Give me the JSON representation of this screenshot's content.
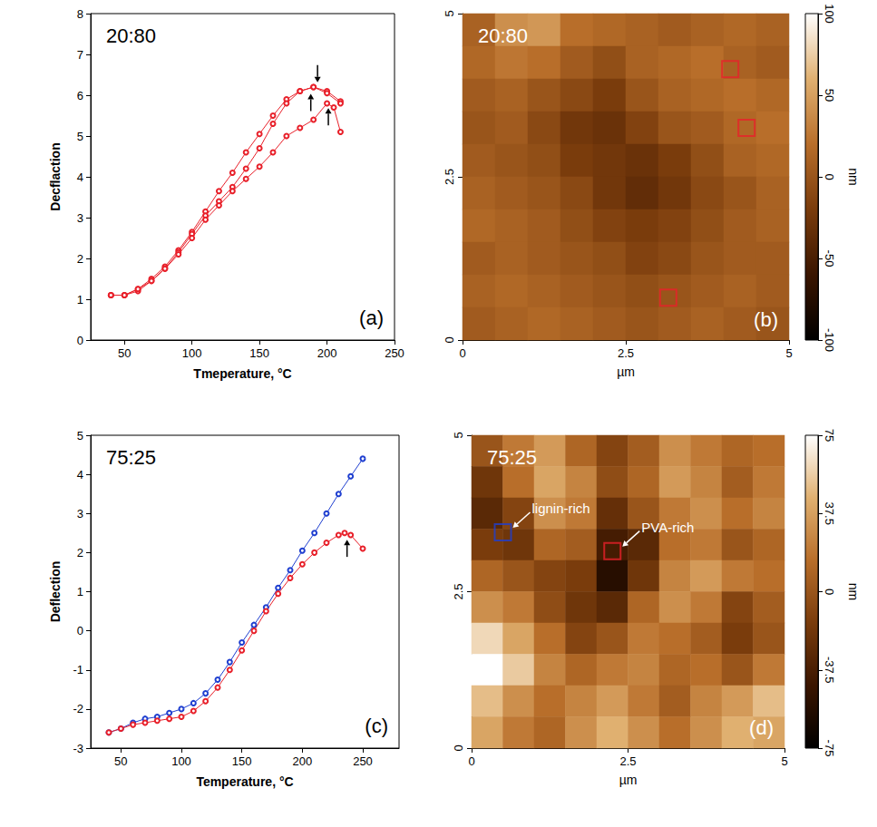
{
  "chart_data": [
    {
      "type": "line",
      "panel": "(a)",
      "title": "20:80",
      "x_label": "Tmeperature, °C",
      "y_label": "Decflaction",
      "xlim": [
        25,
        250
      ],
      "xticks": [
        50,
        100,
        150,
        200,
        250
      ],
      "ylim": [
        0,
        8
      ],
      "yticks": [
        0,
        1,
        2,
        3,
        4,
        5,
        6,
        7,
        8
      ],
      "marker": "circle",
      "series": [
        {
          "color": "#e8202a",
          "x": [
            40,
            50,
            60,
            70,
            80,
            90,
            100,
            110,
            120,
            130,
            140,
            150,
            160,
            170,
            180,
            190,
            200,
            210
          ],
          "values": [
            1.1,
            1.1,
            1.25,
            1.5,
            1.8,
            2.2,
            2.65,
            3.15,
            3.65,
            4.1,
            4.6,
            5.05,
            5.5,
            5.9,
            6.1,
            6.2,
            6.1,
            5.85
          ]
        },
        {
          "color": "#e8202a",
          "x": [
            40,
            50,
            60,
            70,
            80,
            90,
            100,
            110,
            120,
            130,
            140,
            150,
            160,
            170,
            180,
            190,
            200,
            210
          ],
          "values": [
            1.1,
            1.1,
            1.2,
            1.45,
            1.75,
            2.15,
            2.6,
            3.05,
            3.4,
            3.75,
            4.2,
            4.7,
            5.3,
            5.8,
            6.1,
            6.2,
            6.05,
            5.8
          ]
        },
        {
          "color": "#e8202a",
          "x": [
            40,
            50,
            60,
            70,
            80,
            90,
            100,
            110,
            120,
            130,
            140,
            150,
            160,
            170,
            180,
            190,
            200,
            205,
            210
          ],
          "values": [
            1.1,
            1.1,
            1.25,
            1.45,
            1.75,
            2.1,
            2.5,
            2.95,
            3.3,
            3.65,
            3.95,
            4.25,
            4.6,
            5.0,
            5.2,
            5.4,
            5.8,
            5.7,
            5.1
          ]
        }
      ],
      "arrows": [
        {
          "x": 193,
          "y": 6.25,
          "direction": "down"
        },
        {
          "x": 188,
          "y": 6.1,
          "direction": "up"
        },
        {
          "x": 201,
          "y": 5.75,
          "direction": "up"
        }
      ]
    },
    {
      "type": "heatmap",
      "panel": "(b)",
      "title": "20:80",
      "x_label": "µm",
      "xlim": [
        0,
        5
      ],
      "xticks": [
        0,
        2.5,
        5
      ],
      "ylim": [
        0,
        5
      ],
      "yticks": [
        0,
        2.5,
        5
      ],
      "heights": [
        [
          10,
          40,
          45,
          20,
          15,
          10,
          5,
          10,
          15,
          10
        ],
        [
          15,
          25,
          20,
          5,
          -5,
          10,
          15,
          20,
          10,
          5
        ],
        [
          5,
          10,
          0,
          -10,
          -20,
          0,
          10,
          15,
          20,
          15
        ],
        [
          0,
          5,
          -10,
          -25,
          -30,
          -15,
          0,
          5,
          15,
          20
        ],
        [
          5,
          0,
          -5,
          -20,
          -25,
          -30,
          -20,
          -5,
          10,
          15
        ],
        [
          10,
          5,
          0,
          -10,
          -25,
          -35,
          -25,
          -10,
          0,
          10
        ],
        [
          15,
          10,
          5,
          -5,
          -15,
          -20,
          -15,
          -5,
          5,
          10
        ],
        [
          5,
          10,
          5,
          0,
          -5,
          -15,
          -10,
          0,
          5,
          5
        ],
        [
          10,
          15,
          10,
          5,
          0,
          -5,
          0,
          5,
          10,
          5
        ],
        [
          5,
          10,
          15,
          10,
          5,
          0,
          5,
          10,
          5,
          0
        ]
      ],
      "colorbar": {
        "label": "nm",
        "range": [
          -100,
          100
        ],
        "ticks": [
          -100,
          -50,
          0,
          50,
          100
        ]
      },
      "boxes": [
        {
          "x": 4.1,
          "y": 4.15,
          "color": "#e8202a"
        },
        {
          "x": 4.35,
          "y": 3.25,
          "color": "#e8202a"
        },
        {
          "x": 3.15,
          "y": 0.65,
          "color": "#e8202a"
        }
      ]
    },
    {
      "type": "line",
      "panel": "(c)",
      "title": "75:25",
      "x_label": "Temperature, °C",
      "y_label": "Deflection",
      "xlim": [
        25,
        280
      ],
      "xticks": [
        50,
        100,
        150,
        200,
        250
      ],
      "ylim": [
        -3,
        5
      ],
      "yticks": [
        -3,
        -2,
        -1,
        0,
        1,
        2,
        3,
        4,
        5
      ],
      "marker": "circle",
      "series": [
        {
          "color": "#1f3fd0",
          "x": [
            40,
            50,
            60,
            70,
            80,
            90,
            100,
            110,
            120,
            130,
            140,
            150,
            160,
            170,
            180,
            190,
            200,
            210,
            220,
            230,
            240,
            250
          ],
          "values": [
            -2.6,
            -2.5,
            -2.35,
            -2.25,
            -2.2,
            -2.1,
            -2.0,
            -1.85,
            -1.6,
            -1.25,
            -0.8,
            -0.3,
            0.15,
            0.6,
            1.1,
            1.55,
            2.05,
            2.5,
            3.0,
            3.5,
            3.95,
            4.4
          ]
        },
        {
          "color": "#e8202a",
          "x": [
            40,
            50,
            60,
            70,
            80,
            90,
            100,
            110,
            120,
            130,
            140,
            150,
            160,
            170,
            180,
            190,
            200,
            210,
            220,
            230,
            235,
            240,
            250
          ],
          "values": [
            -2.6,
            -2.5,
            -2.4,
            -2.35,
            -2.3,
            -2.25,
            -2.2,
            -2.05,
            -1.8,
            -1.45,
            -1.0,
            -0.5,
            0.0,
            0.5,
            0.95,
            1.35,
            1.7,
            2.0,
            2.25,
            2.45,
            2.5,
            2.45,
            2.1
          ]
        }
      ],
      "arrows": [
        {
          "x": 237,
          "y": 2.4,
          "direction": "up"
        }
      ]
    },
    {
      "type": "heatmap",
      "panel": "(d)",
      "title": "75:25",
      "x_label": "µm",
      "xlim": [
        0,
        5
      ],
      "xticks": [
        0,
        2.5,
        5
      ],
      "ylim": [
        0,
        5
      ],
      "yticks": [
        0,
        2.5,
        5
      ],
      "heights": [
        [
          0,
          20,
          35,
          10,
          -10,
          5,
          30,
          20,
          10,
          15
        ],
        [
          -20,
          15,
          40,
          25,
          -5,
          10,
          35,
          25,
          5,
          20
        ],
        [
          -30,
          -10,
          30,
          20,
          -25,
          0,
          20,
          30,
          15,
          25
        ],
        [
          -15,
          -20,
          10,
          5,
          -40,
          -30,
          15,
          20,
          0,
          10
        ],
        [
          10,
          0,
          -10,
          -15,
          -55,
          -20,
          25,
          35,
          20,
          15
        ],
        [
          30,
          20,
          -5,
          -20,
          -30,
          10,
          30,
          20,
          -10,
          5
        ],
        [
          60,
          40,
          15,
          -10,
          0,
          20,
          15,
          5,
          -15,
          0
        ],
        [
          75,
          55,
          25,
          10,
          20,
          25,
          10,
          15,
          0,
          20
        ],
        [
          50,
          30,
          15,
          25,
          35,
          20,
          5,
          25,
          35,
          50
        ],
        [
          40,
          20,
          10,
          30,
          45,
          30,
          15,
          30,
          45,
          40
        ]
      ],
      "colorbar": {
        "label": "nm",
        "range": [
          -75,
          75
        ],
        "ticks": [
          -75,
          -37.5,
          0,
          37.5,
          75
        ]
      },
      "boxes": [
        {
          "x": 0.5,
          "y": 3.45,
          "color": "#1f3fd0",
          "label": "lignin-rich"
        },
        {
          "x": 2.25,
          "y": 3.15,
          "color": "#e8202a",
          "label": "PVA-rich"
        }
      ]
    }
  ]
}
